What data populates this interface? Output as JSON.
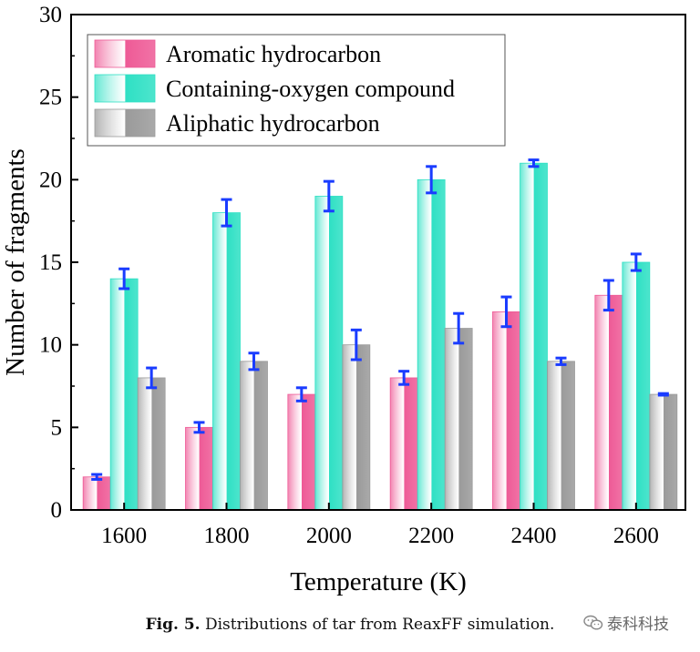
{
  "chart_data": {
    "type": "bar",
    "xlabel": "Temperature (K)",
    "ylabel": "Number of fragments",
    "ylim": [
      0,
      30
    ],
    "yticks": [
      0,
      5,
      10,
      15,
      20,
      25,
      30
    ],
    "categories": [
      "1600",
      "1800",
      "2000",
      "2200",
      "2400",
      "2600"
    ],
    "grid": false,
    "legend_position": "top-left",
    "series": [
      {
        "name": "Aromatic hydrocarbon",
        "color": "#ee5a96",
        "values": [
          2,
          5,
          7,
          8,
          12,
          13
        ],
        "errors": [
          0.15,
          0.3,
          0.4,
          0.4,
          0.9,
          0.9
        ]
      },
      {
        "name": "Containing-oxygen compound",
        "color": "#2ee0c4",
        "values": [
          14,
          18,
          19,
          20,
          21,
          15
        ],
        "errors": [
          0.6,
          0.8,
          0.9,
          0.8,
          0.2,
          0.5
        ]
      },
      {
        "name": "Aliphatic hydrocarbon",
        "color": "#9a9a9a",
        "values": [
          8,
          9,
          10,
          11,
          9,
          7
        ],
        "errors": [
          0.6,
          0.5,
          0.9,
          0.9,
          0.2,
          0.05
        ]
      }
    ],
    "errorbar_color": "#1a3cff"
  },
  "caption": {
    "label": "Fig. 5.",
    "text": "Distributions of tar from ReaxFF simulation."
  },
  "watermark": {
    "icon": "wechat-icon",
    "text": "泰科科技"
  }
}
